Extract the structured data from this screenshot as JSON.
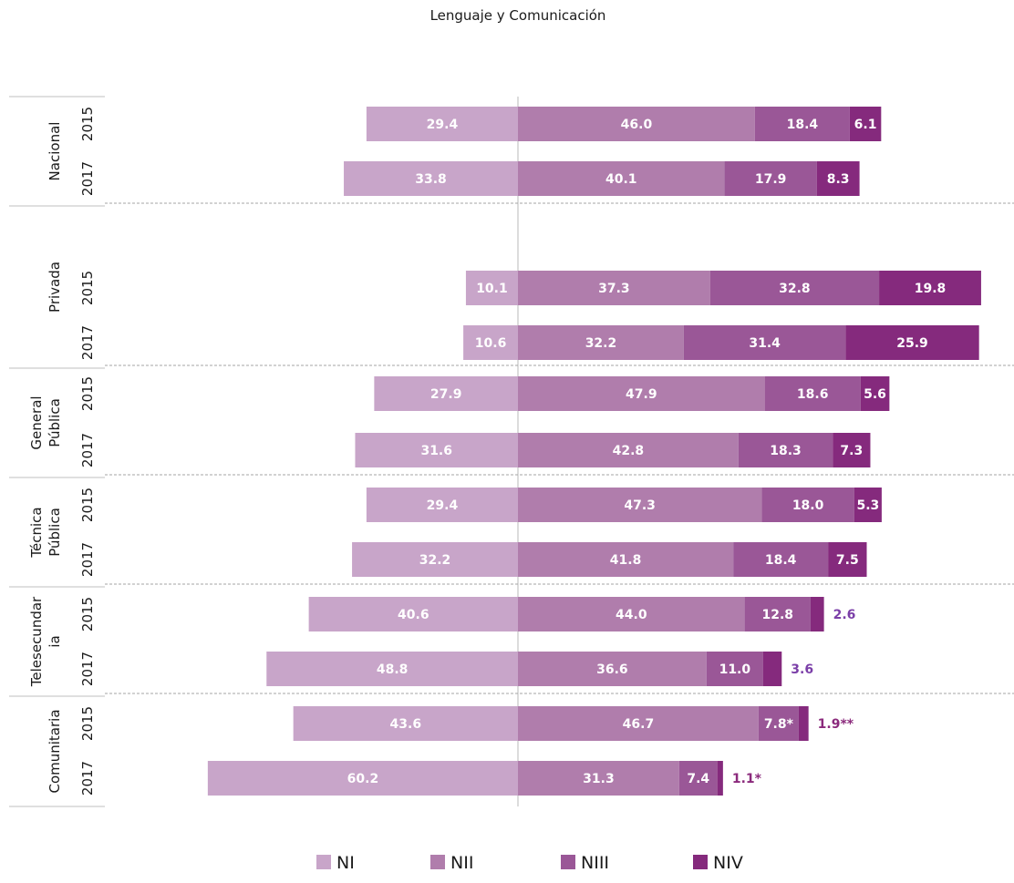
{
  "chart_data": {
    "type": "bar",
    "orientation": "horizontal-diverging",
    "title": "Lenguaje y Comunicación",
    "series": [
      {
        "name": "NI",
        "color": "#c8a5c9"
      },
      {
        "name": "NII",
        "color": "#b07dac"
      },
      {
        "name": "NIII",
        "color": "#9a5797"
      },
      {
        "name": "NIV",
        "color": "#852a7d"
      }
    ],
    "groups": [
      {
        "label": [
          "Nacional"
        ],
        "rows": [
          {
            "year": "2015",
            "values": [
              29.4,
              46.0,
              18.4,
              6.1
            ],
            "labels": [
              "29.4",
              "46.0",
              "18.4",
              "6.1"
            ]
          },
          {
            "year": "2017",
            "values": [
              33.8,
              40.1,
              17.9,
              8.3
            ],
            "labels": [
              "33.8",
              "40.1",
              "17.9",
              "8.3"
            ]
          }
        ]
      },
      {
        "label": [
          "Privada"
        ],
        "rows": [
          {
            "year": "2015",
            "values": [
              10.1,
              37.3,
              32.8,
              19.8
            ],
            "labels": [
              "10.1",
              "37.3",
              "32.8",
              "19.8"
            ]
          },
          {
            "year": "2017",
            "values": [
              10.6,
              32.2,
              31.4,
              25.9
            ],
            "labels": [
              "10.6",
              "32.2",
              "31.4",
              "25.9"
            ]
          }
        ]
      },
      {
        "label": [
          "General",
          "Pública"
        ],
        "rows": [
          {
            "year": "2015",
            "values": [
              27.9,
              47.9,
              18.6,
              5.6
            ],
            "labels": [
              "27.9",
              "47.9",
              "18.6",
              "5.6"
            ]
          },
          {
            "year": "2017",
            "values": [
              31.6,
              42.8,
              18.3,
              7.3
            ],
            "labels": [
              "31.6",
              "42.8",
              "18.3",
              "7.3"
            ]
          }
        ]
      },
      {
        "label": [
          "Técnica",
          "Pública"
        ],
        "rows": [
          {
            "year": "2015",
            "values": [
              29.4,
              47.3,
              18.0,
              5.3
            ],
            "labels": [
              "29.4",
              "47.3",
              "18.0",
              "5.3"
            ]
          },
          {
            "year": "2017",
            "values": [
              32.2,
              41.8,
              18.4,
              7.5
            ],
            "labels": [
              "32.2",
              "41.8",
              "18.4",
              "7.5"
            ]
          }
        ]
      },
      {
        "label": [
          "Telesecundar",
          "ia"
        ],
        "rows": [
          {
            "year": "2015",
            "values": [
              40.6,
              44.0,
              12.8,
              2.6
            ],
            "labels": [
              "40.6",
              "44.0",
              "12.8",
              "2.6"
            ]
          },
          {
            "year": "2017",
            "values": [
              48.8,
              36.6,
              11.0,
              3.6
            ],
            "labels": [
              "48.8",
              "36.6",
              "11.0",
              "3.6"
            ]
          }
        ]
      },
      {
        "label": [
          "Comunitaria"
        ],
        "rows": [
          {
            "year": "2015",
            "values": [
              43.6,
              46.7,
              7.8,
              1.9
            ],
            "labels": [
              "43.6",
              "46.7",
              "7.8*",
              "1.9**"
            ]
          },
          {
            "year": "2017",
            "values": [
              60.2,
              31.3,
              7.4,
              1.1
            ],
            "labels": [
              "60.2",
              "31.3",
              "7.4",
              "1.1*"
            ]
          }
        ]
      }
    ],
    "outside_label_colors": [
      "#7b3fa8",
      "#8b2a7c"
    ],
    "legend_position": "bottom"
  }
}
